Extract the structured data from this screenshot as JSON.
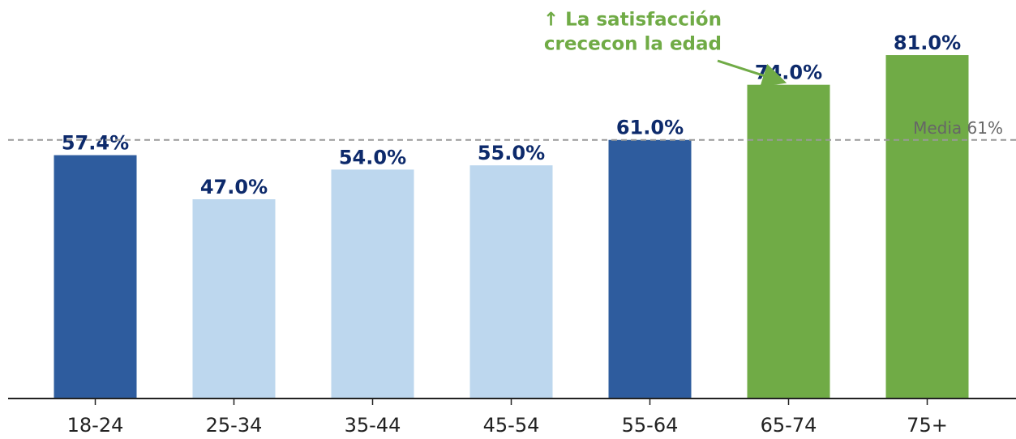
{
  "chart_data": {
    "type": "bar",
    "categories": [
      "18-24",
      "25-34",
      "35-44",
      "45-54",
      "55-64",
      "65-74",
      "75+"
    ],
    "values": [
      57.4,
      47.0,
      54.0,
      55.0,
      61.0,
      74.0,
      81.0
    ],
    "value_labels": [
      "57.4%",
      "47.0%",
      "54.0%",
      "55.0%",
      "61.0%",
      "74.0%",
      "81.0%"
    ],
    "colors": [
      "#2e5c9e",
      "#bdd7ee",
      "#bdd7ee",
      "#bdd7ee",
      "#2e5c9e",
      "#70ab46",
      "#70ab46"
    ],
    "ylim": [
      0,
      94
    ],
    "reference_line": {
      "value": 61,
      "label": "Media 61%",
      "color": "#999999"
    },
    "annotation": {
      "lines": [
        "↑ La satisfacción",
        "crececon la edad"
      ],
      "color": "#70ab46",
      "target": 5
    }
  }
}
